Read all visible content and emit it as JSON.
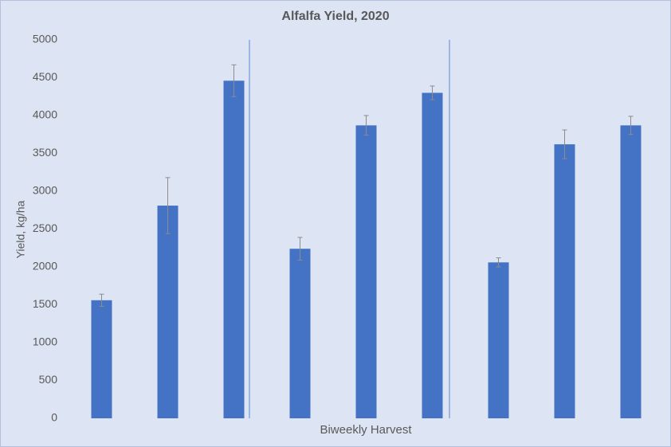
{
  "chart_data": {
    "type": "bar",
    "title": "Alfalfa Yield, 2020",
    "y_label": "Yield, kg/ha",
    "x_label": "Biweekly Harvest",
    "categories": [
      null,
      null,
      null,
      null,
      null,
      null,
      null,
      null,
      null
    ],
    "values": [
      1560,
      2810,
      4460,
      2240,
      3870,
      4300,
      2060,
      3620,
      3870
    ],
    "errors": [
      80,
      370,
      210,
      150,
      130,
      90,
      60,
      190,
      120
    ],
    "color": "#4472c4",
    "error_color": "#8c8c8c",
    "ylim": [
      0,
      5000
    ],
    "yticks": [
      0,
      500,
      1000,
      1500,
      2000,
      2500,
      3000,
      3500,
      4000,
      4500,
      5000
    ],
    "grid": false
  }
}
